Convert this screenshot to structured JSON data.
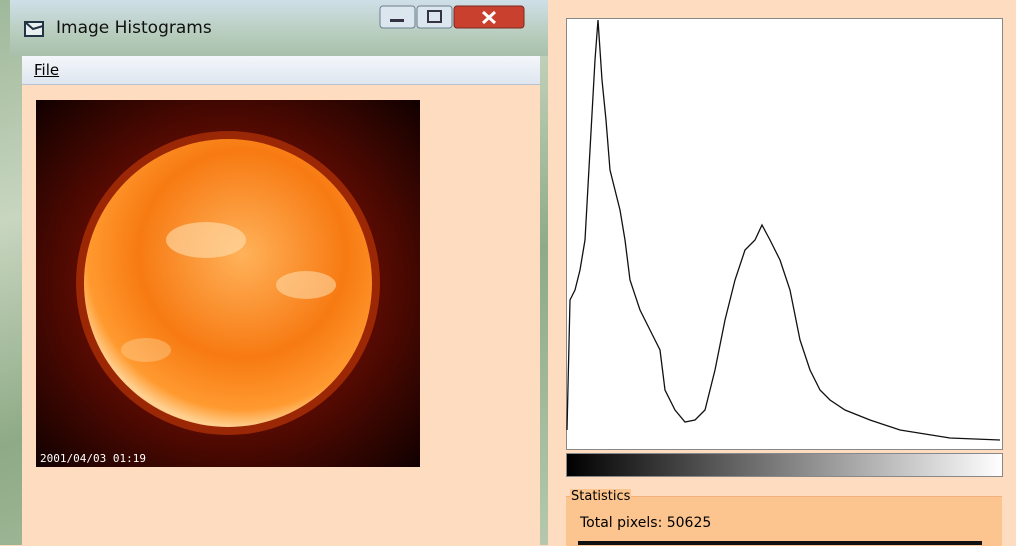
{
  "window": {
    "title": "Image Histograms",
    "menu": [
      "File"
    ]
  },
  "image": {
    "caption": "2001/04/03 01:19"
  },
  "statistics": {
    "title": "Statistics",
    "lines": [
      "Total pixels: 50625"
    ]
  }
}
